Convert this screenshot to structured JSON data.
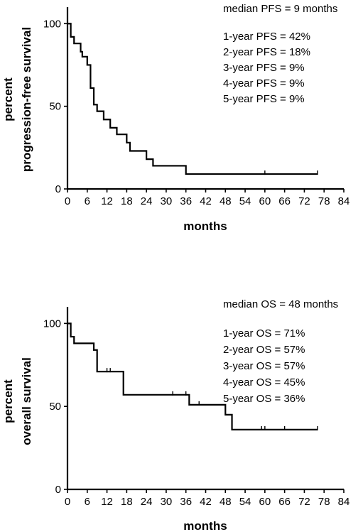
{
  "chart_data": [
    {
      "type": "line",
      "xlabel": "months",
      "ylabel": [
        "percent",
        "progression-free survival"
      ],
      "xlim": [
        0,
        84
      ],
      "ylim": [
        0,
        110
      ],
      "xticks": [
        0,
        6,
        12,
        18,
        24,
        30,
        36,
        42,
        48,
        54,
        60,
        66,
        72,
        78,
        84
      ],
      "yticks": [
        0,
        50,
        100
      ],
      "annotation_title": "median PFS = 9 months",
      "annotations": [
        "1-year PFS = 42%",
        "2-year PFS = 18%",
        "3-year PFS = 9%",
        "4-year PFS = 9%",
        "5-year PFS = 9%"
      ],
      "series": [
        {
          "step_points": [
            [
              0,
              100
            ],
            [
              1,
              92
            ],
            [
              2,
              88
            ],
            [
              4,
              83
            ],
            [
              4.5,
              80
            ],
            [
              6,
              75
            ],
            [
              7,
              61
            ],
            [
              8,
              51
            ],
            [
              9,
              47
            ],
            [
              11,
              42
            ],
            [
              13,
              37
            ],
            [
              15,
              33
            ],
            [
              18,
              28
            ],
            [
              19,
              23
            ],
            [
              24,
              18
            ],
            [
              26,
              14
            ],
            [
              36,
              9
            ],
            [
              76,
              9
            ]
          ],
          "censored": [
            [
              4.5,
              80
            ],
            [
              60,
              9
            ],
            [
              76,
              9
            ]
          ]
        }
      ]
    },
    {
      "type": "line",
      "xlabel": "months",
      "ylabel": [
        "percent",
        "overall survival"
      ],
      "xlim": [
        0,
        84
      ],
      "ylim": [
        0,
        110
      ],
      "xticks": [
        0,
        6,
        12,
        18,
        24,
        30,
        36,
        42,
        48,
        54,
        60,
        66,
        72,
        78,
        84
      ],
      "yticks": [
        0,
        50,
        100
      ],
      "annotation_title": "median OS = 48 months",
      "annotations": [
        "1-year OS = 71%",
        "2-year OS = 57%",
        "3-year OS = 57%",
        "4-year OS = 45%",
        "5-year OS = 36%"
      ],
      "series": [
        {
          "step_points": [
            [
              0,
              100
            ],
            [
              1,
              92
            ],
            [
              2,
              88
            ],
            [
              8,
              84
            ],
            [
              9,
              71
            ],
            [
              17,
              57
            ],
            [
              37,
              51
            ],
            [
              48,
              45
            ],
            [
              50,
              36
            ],
            [
              76,
              36
            ]
          ],
          "censored": [
            [
              12,
              71
            ],
            [
              13,
              71
            ],
            [
              32,
              57
            ],
            [
              36,
              57
            ],
            [
              40,
              51
            ],
            [
              59,
              36
            ],
            [
              60,
              36
            ],
            [
              66,
              36
            ],
            [
              76,
              36
            ]
          ]
        }
      ]
    }
  ]
}
